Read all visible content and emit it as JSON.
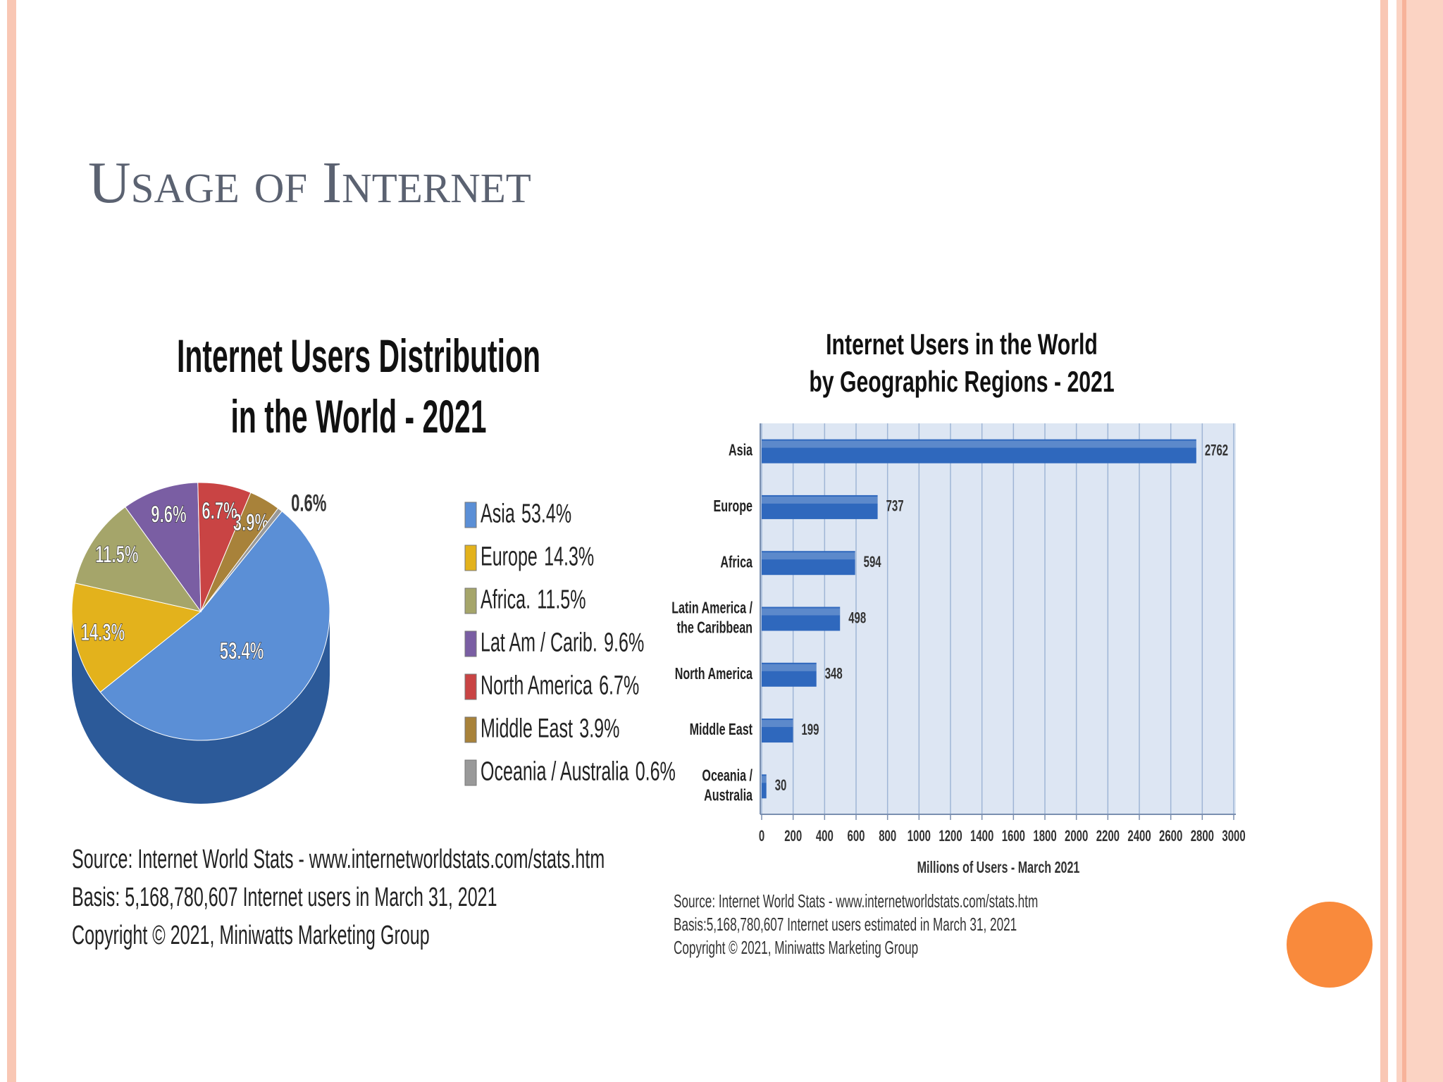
{
  "slide_title": "Usage of Internet",
  "chart_data": [
    {
      "type": "pie",
      "title": [
        "Internet Users Distribution",
        "in the World - 2021"
      ],
      "categories": [
        "Asia",
        "Europe",
        "Africa.",
        "Lat Am / Carib.",
        "North America",
        "Middle East",
        "Oceania / Australia"
      ],
      "values": [
        53.4,
        14.3,
        11.5,
        9.6,
        6.7,
        3.9,
        0.6
      ],
      "value_labels": [
        "53.4%",
        "14.3%",
        "11.5%",
        "9.6%",
        "6.7%",
        "3.9%",
        "0.6%"
      ],
      "colors": [
        "#5b8fd6",
        "#e3b21c",
        "#a5a56a",
        "#7a5ea3",
        "#c94444",
        "#a8823a",
        "#999999"
      ],
      "legend": "right",
      "notes": [
        "Source: Internet World Stats -  www.internetworldstats.com/stats.htm",
        "Basis: 5,168,780,607 Internet users in March 31, 2021",
        "Copyright © 2021, Miniwatts Marketing Group"
      ]
    },
    {
      "type": "bar",
      "orientation": "horizontal",
      "title": [
        "Internet Users in the World",
        "by Geographic Regions -  2021"
      ],
      "categories": [
        [
          "Asia"
        ],
        [
          "Europe"
        ],
        [
          "Africa"
        ],
        [
          "Latin America /",
          "the Caribbean"
        ],
        [
          "North America"
        ],
        [
          "Middle East"
        ],
        [
          "Oceania  /",
          "Australia"
        ]
      ],
      "values": [
        2762,
        737,
        594,
        498,
        348,
        199,
        30
      ],
      "color": "#2f68bd",
      "xlim": [
        0,
        3000
      ],
      "xticks": [
        0,
        200,
        400,
        600,
        800,
        1000,
        1200,
        1400,
        1600,
        1800,
        2000,
        2200,
        2400,
        2600,
        2800,
        3000
      ],
      "xlabel": "Millions of Users - March 2021",
      "grid": true,
      "notes": [
        "Source: Internet World Stats - www.internetworldstats.com/stats.htm",
        "Basis:5,168,780,607 Internet users estimated in March 31, 2021",
        "Copyright © 2021, Miniwatts Marketing Group"
      ]
    }
  ]
}
